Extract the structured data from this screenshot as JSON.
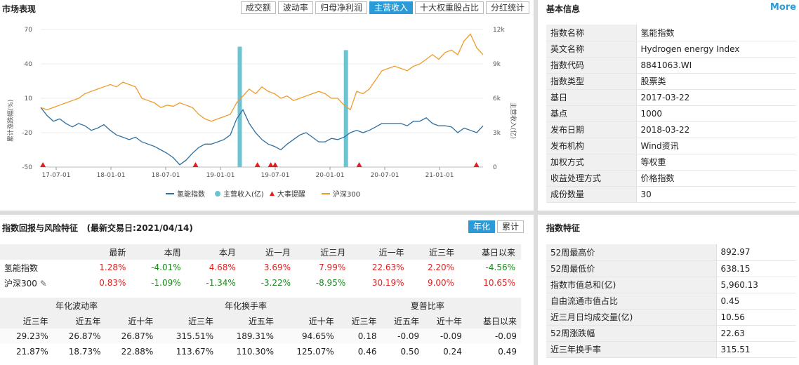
{
  "market": {
    "title": "市场表现",
    "tabs": [
      "成交额",
      "波动率",
      "归母净利润",
      "主营收入",
      "十大权重股占比",
      "分红统计"
    ],
    "active_tab": "主营收入",
    "legend": [
      "氢能指数",
      "主营收入(亿)",
      "大事提醒",
      "沪深300"
    ],
    "left_axis_label": "累计涨跌幅(%)",
    "right_axis_label": "主营收入(亿)"
  },
  "chart_data": {
    "type": "line",
    "left_ticks": [
      "70",
      "40",
      "10",
      "-20",
      "-50"
    ],
    "right_ticks": [
      "12k",
      "9k",
      "6k",
      "3k",
      "0"
    ],
    "x_ticks": [
      "17-07-01",
      "18-01-01",
      "18-07-01",
      "19-01-01",
      "19-07-01",
      "20-01-01",
      "20-07-01",
      "21-01-01"
    ],
    "ylim_left": [
      -50,
      70
    ],
    "ylim_right": [
      0,
      12000
    ],
    "series": [
      {
        "name": "氢能指数",
        "color": "#2f6f9f",
        "values": [
          2,
          -5,
          -10,
          -8,
          -12,
          -15,
          -12,
          -14,
          -18,
          -16,
          -13,
          -18,
          -22,
          -24,
          -26,
          -24,
          -28,
          -30,
          -32,
          -35,
          -38,
          -42,
          -48,
          -44,
          -38,
          -33,
          -30,
          -30,
          -28,
          -26,
          -22,
          -8,
          0,
          -12,
          -20,
          -26,
          -30,
          -32,
          -35,
          -30,
          -26,
          -22,
          -20,
          -24,
          -28,
          -28,
          -25,
          -26,
          -24,
          -20,
          -18,
          -20,
          -18,
          -15,
          -12,
          -12,
          -12,
          -12,
          -14,
          -10,
          -10,
          -7,
          -12,
          -14,
          -14,
          -15,
          -20,
          -16,
          -18,
          -20,
          -14
        ]
      },
      {
        "name": "沪深300",
        "color": "#f09a2a",
        "values": [
          2,
          0,
          2,
          4,
          6,
          8,
          10,
          14,
          16,
          18,
          20,
          22,
          20,
          24,
          22,
          20,
          10,
          8,
          6,
          2,
          4,
          3,
          6,
          4,
          2,
          -4,
          -8,
          -10,
          -8,
          -6,
          -4,
          6,
          12,
          18,
          14,
          20,
          16,
          14,
          10,
          12,
          8,
          10,
          12,
          14,
          16,
          14,
          10,
          10,
          4,
          0,
          16,
          14,
          18,
          26,
          34,
          36,
          38,
          36,
          34,
          38,
          40,
          44,
          48,
          44,
          50,
          52,
          48,
          60,
          66,
          54,
          48
        ]
      }
    ],
    "bars": [
      {
        "name": "主营收入(亿)",
        "color": "#6cc3d2",
        "at": [
          0.45,
          0.69
        ],
        "values": [
          10500,
          10200
        ]
      }
    ],
    "events": [
      0.005,
      0.35,
      0.49,
      0.52,
      0.53,
      0.72,
      0.985
    ]
  },
  "info": {
    "title": "基本信息",
    "more": "More",
    "rows": [
      {
        "k": "指数名称",
        "v": "氢能指数"
      },
      {
        "k": "英文名称",
        "v": "Hydrogen energy Index"
      },
      {
        "k": "指数代码",
        "v": "8841063.WI"
      },
      {
        "k": "指数类型",
        "v": "股票类"
      },
      {
        "k": "基日",
        "v": "2017-03-22"
      },
      {
        "k": "基点",
        "v": "1000"
      },
      {
        "k": "发布日期",
        "v": "2018-03-22"
      },
      {
        "k": "发布机构",
        "v": "Wind资讯"
      },
      {
        "k": "加权方式",
        "v": "等权重"
      },
      {
        "k": "收益处理方式",
        "v": "价格指数"
      },
      {
        "k": "成份数量",
        "v": "30"
      }
    ]
  },
  "returns": {
    "title": "指数回报与风险特征",
    "subtitle": "(最新交易日:2021/04/14)",
    "toggle": [
      "年化",
      "累计"
    ],
    "headers": [
      "",
      "最新",
      "本周",
      "本月",
      "近一月",
      "近三月",
      "近一年",
      "近三年",
      "基日以来"
    ],
    "rows": [
      {
        "name": "氢能指数",
        "vals": [
          "1.28%",
          "-4.01%",
          "4.68%",
          "3.69%",
          "7.99%",
          "22.63%",
          "2.20%",
          "-4.56%"
        ]
      },
      {
        "name": "沪深300",
        "vals": [
          "0.83%",
          "-1.09%",
          "-1.34%",
          "-3.22%",
          "-8.95%",
          "30.19%",
          "9.00%",
          "10.65%"
        ]
      }
    ],
    "risk_groups": [
      "年化波动率",
      "年化换手率",
      "夏普比率"
    ],
    "risk_headers": [
      "近三年",
      "近五年",
      "近十年",
      "近三年",
      "近五年",
      "近十年",
      "近三年",
      "近五年",
      "近十年",
      "基日以来"
    ],
    "risk_rows": [
      [
        "29.23%",
        "26.87%",
        "26.87%",
        "315.51%",
        "189.31%",
        "94.65%",
        "0.18",
        "-0.09",
        "-0.09",
        "-0.09"
      ],
      [
        "21.87%",
        "18.73%",
        "22.88%",
        "113.67%",
        "110.30%",
        "125.07%",
        "0.46",
        "0.50",
        "0.24",
        "0.49"
      ]
    ]
  },
  "features": {
    "title": "指数特征",
    "rows": [
      {
        "k": "52周最高价",
        "v": "892.97"
      },
      {
        "k": "52周最低价",
        "v": "638.15"
      },
      {
        "k": "指数市值总和(亿)",
        "v": "5,960.13"
      },
      {
        "k": "自由流通市值占比",
        "v": "0.45"
      },
      {
        "k": "近三月日均成交量(亿)",
        "v": "10.56"
      },
      {
        "k": "52周涨跌幅",
        "v": "22.63"
      },
      {
        "k": "近三年换手率",
        "v": "315.51"
      }
    ]
  }
}
